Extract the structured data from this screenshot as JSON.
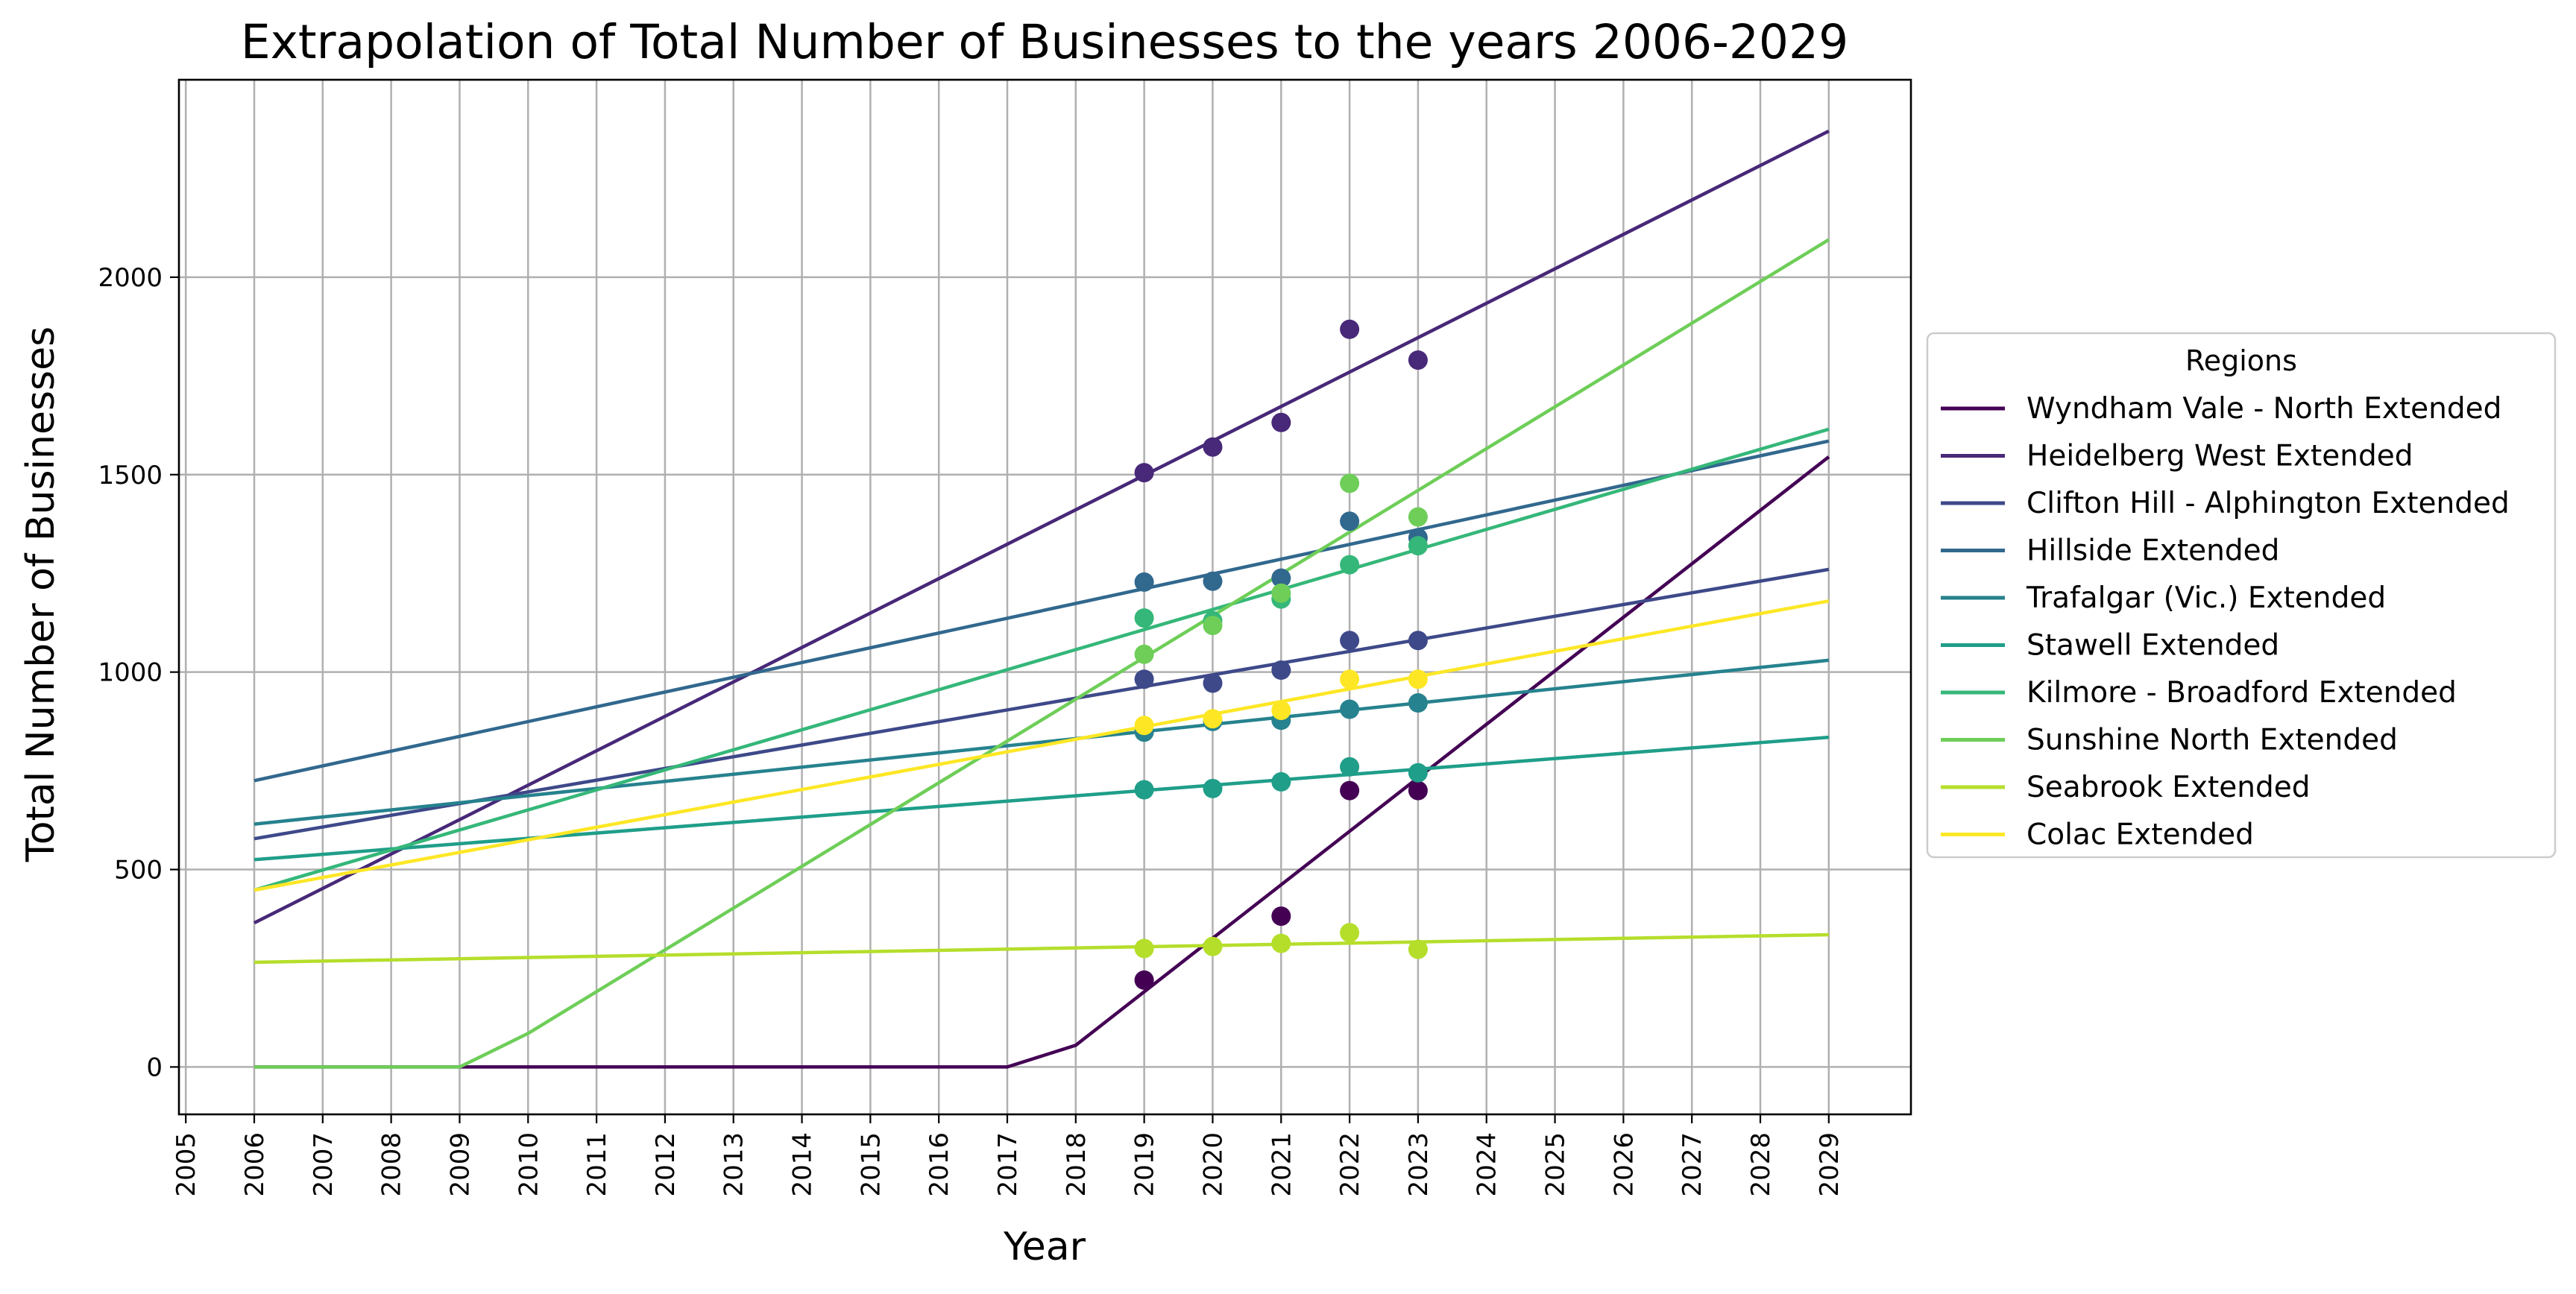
{
  "chart_data": {
    "type": "line",
    "title": "Extrapolation of Total Number of Businesses to the years 2006-2029",
    "xlabel": "Year",
    "ylabel": "Total Number of Businesses",
    "xlim": [
      2004.9,
      2030.2
    ],
    "ylim": [
      -120,
      2500
    ],
    "x_ticks": [
      "2005",
      "2006",
      "2007",
      "2008",
      "2009",
      "2010",
      "2011",
      "2012",
      "2013",
      "2014",
      "2015",
      "2016",
      "2017",
      "2018",
      "2019",
      "2020",
      "2021",
      "2022",
      "2023",
      "2024",
      "2025",
      "2026",
      "2027",
      "2028",
      "2029"
    ],
    "y_ticks": [
      "0",
      "500",
      "1000",
      "1500",
      "2000"
    ],
    "grid": true,
    "legend": {
      "title": "Regions",
      "position": "outside right"
    },
    "series": [
      {
        "name": "Wyndham Vale - North Extended",
        "color": "#440154",
        "line": [
          [
            2006,
            0
          ],
          [
            2017,
            0
          ],
          [
            2018,
            55
          ],
          [
            2029,
            1545
          ]
        ],
        "points": [
          [
            2019,
            220
          ],
          [
            2021,
            382
          ],
          [
            2022,
            700
          ],
          [
            2023,
            700
          ]
        ]
      },
      {
        "name": "Heidelberg West Extended",
        "color": "#482878",
        "line": [
          [
            2006,
            365
          ],
          [
            2029,
            2370
          ]
        ],
        "points": [
          [
            2019,
            1505
          ],
          [
            2020,
            1570
          ],
          [
            2021,
            1632
          ],
          [
            2022,
            1868
          ],
          [
            2023,
            1790
          ]
        ]
      },
      {
        "name": "Clifton Hill - Alphington Extended",
        "color": "#3e4989",
        "line": [
          [
            2006,
            578
          ],
          [
            2029,
            1260
          ]
        ],
        "points": [
          [
            2019,
            982
          ],
          [
            2020,
            972
          ],
          [
            2021,
            1005
          ],
          [
            2022,
            1080
          ],
          [
            2023,
            1080
          ]
        ]
      },
      {
        "name": "Hillside Extended",
        "color": "#31688e",
        "line": [
          [
            2006,
            725
          ],
          [
            2029,
            1585
          ]
        ],
        "points": [
          [
            2019,
            1228
          ],
          [
            2020,
            1230
          ],
          [
            2021,
            1238
          ],
          [
            2022,
            1382
          ],
          [
            2023,
            1340
          ]
        ]
      },
      {
        "name": "Trafalgar (Vic.) Extended",
        "color": "#26828e",
        "line": [
          [
            2006,
            615
          ],
          [
            2029,
            1030
          ]
        ],
        "points": [
          [
            2019,
            848
          ],
          [
            2020,
            875
          ],
          [
            2021,
            878
          ],
          [
            2022,
            906
          ],
          [
            2023,
            922
          ]
        ]
      },
      {
        "name": "Stawell Extended",
        "color": "#1f9e89",
        "line": [
          [
            2006,
            525
          ],
          [
            2029,
            835
          ]
        ],
        "points": [
          [
            2019,
            702
          ],
          [
            2020,
            705
          ],
          [
            2021,
            722
          ],
          [
            2022,
            760
          ],
          [
            2023,
            745
          ]
        ]
      },
      {
        "name": "Kilmore - Broadford Extended",
        "color": "#35b779",
        "line": [
          [
            2006,
            448
          ],
          [
            2029,
            1615
          ]
        ],
        "points": [
          [
            2019,
            1137
          ],
          [
            2020,
            1130
          ],
          [
            2021,
            1185
          ],
          [
            2022,
            1272
          ],
          [
            2023,
            1320
          ]
        ]
      },
      {
        "name": "Sunshine North Extended",
        "color": "#6ece58",
        "line": [
          [
            2006,
            0
          ],
          [
            2009,
            0
          ],
          [
            2010,
            85
          ],
          [
            2029,
            2095
          ]
        ],
        "points": [
          [
            2019,
            1045
          ],
          [
            2020,
            1118
          ],
          [
            2021,
            1200
          ],
          [
            2022,
            1478
          ],
          [
            2023,
            1393
          ]
        ]
      },
      {
        "name": "Seabrook Extended",
        "color": "#b5de2b",
        "line": [
          [
            2006,
            265
          ],
          [
            2029,
            335
          ]
        ],
        "points": [
          [
            2019,
            300
          ],
          [
            2020,
            305
          ],
          [
            2021,
            313
          ],
          [
            2022,
            340
          ],
          [
            2023,
            298
          ]
        ]
      },
      {
        "name": "Colac Extended",
        "color": "#fde725",
        "line": [
          [
            2006,
            448
          ],
          [
            2029,
            1180
          ]
        ],
        "points": [
          [
            2019,
            865
          ],
          [
            2020,
            882
          ],
          [
            2021,
            903
          ],
          [
            2022,
            982
          ],
          [
            2023,
            982
          ]
        ]
      }
    ]
  }
}
